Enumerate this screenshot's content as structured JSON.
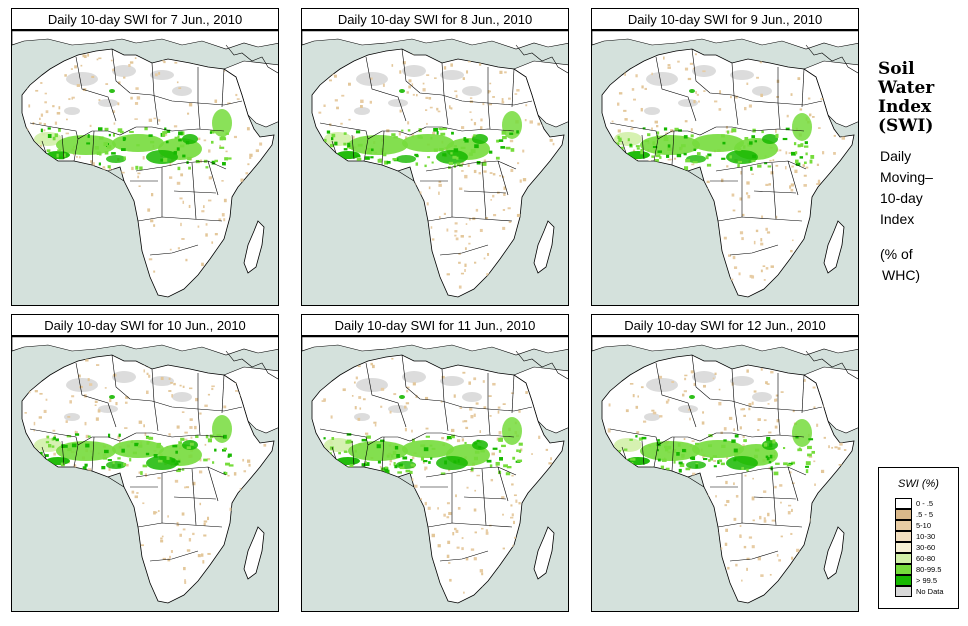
{
  "panels": [
    {
      "title": "Daily 10-day SWI for  7 Jun., 2010"
    },
    {
      "title": "Daily 10-day SWI for  8 Jun., 2010"
    },
    {
      "title": "Daily 10-day SWI for  9 Jun., 2010"
    },
    {
      "title": "Daily 10-day SWI for  10 Jun., 2010"
    },
    {
      "title": "Daily 10-day SWI for  11 Jun., 2010"
    },
    {
      "title": "Daily 10-day SWI for  12 Jun., 2010"
    }
  ],
  "sidebar": {
    "title_lines": [
      "Soil",
      "Water",
      "Index",
      "(SWI)"
    ],
    "desc_lines": [
      "Daily",
      "Moving–",
      "10-day",
      "Index"
    ],
    "units_lines": [
      "(% of",
      "WHC)"
    ]
  },
  "legend": {
    "title": "SWI (%)",
    "items": [
      {
        "label": "0 - .5",
        "color": "#ffffff"
      },
      {
        "label": ".5 - 5",
        "color": "#d9b88a"
      },
      {
        "label": "5-10",
        "color": "#e7cca4"
      },
      {
        "label": "10-30",
        "color": "#f2dfbf"
      },
      {
        "label": "30-60",
        "color": "#f7f0d4"
      },
      {
        "label": "60-80",
        "color": "#d2f0a8"
      },
      {
        "label": "80-99.5",
        "color": "#76dc3c"
      },
      {
        "label": "> 99.5",
        "color": "#17b800"
      },
      {
        "label": "No Data",
        "color": "#d8d8d8"
      }
    ]
  },
  "colors": {
    "sea": "#d4e1dc",
    "land": "#ffffff",
    "nodata": "#d8d8d8",
    "sahara_sand": "#e7cca4",
    "wet": "#76dc3c",
    "saturated": "#17b800",
    "moist": "#d2f0a8"
  }
}
